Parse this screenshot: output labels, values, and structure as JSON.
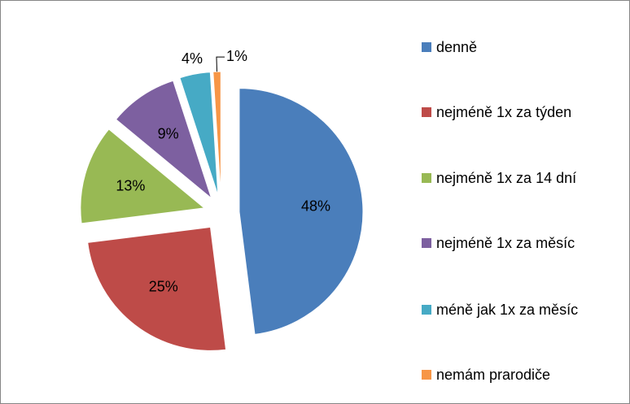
{
  "chart_data": {
    "type": "pie",
    "categories": [
      "denně",
      "nejméně 1x za týden",
      "nejméně 1x za 14 dní",
      "nejméně 1x za měsíc",
      "méně jak 1x za měsíc",
      "nemám prarodiče"
    ],
    "values": [
      48,
      25,
      13,
      9,
      4,
      1
    ],
    "value_labels": [
      "48%",
      "25%",
      "13%",
      "9%",
      "4%",
      "1%"
    ],
    "colors": [
      "#4a7ebb",
      "#be4b48",
      "#98b954",
      "#7d60a0",
      "#46aac5",
      "#f79646"
    ],
    "legend": "right"
  }
}
